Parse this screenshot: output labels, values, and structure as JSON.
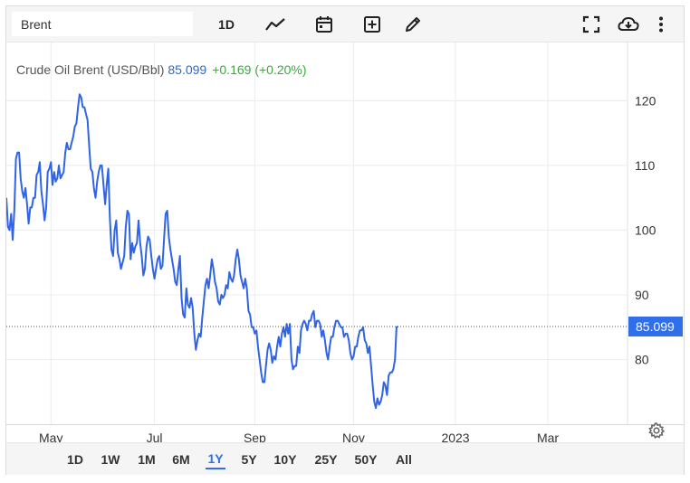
{
  "toolbar": {
    "search_value": "Brent",
    "timeframe_label": "1D",
    "icons": [
      "line-chart-icon",
      "calendar-icon",
      "plus-square-icon",
      "pencil-icon",
      "fullscreen-icon",
      "cloud-download-icon",
      "more-vertical-icon"
    ]
  },
  "legend": {
    "name": "Crude Oil Brent (USD/Bbl)",
    "price": "85.099",
    "change": "+0.169 (+0.20%)"
  },
  "range_buttons": [
    {
      "label": "1D"
    },
    {
      "label": "1W"
    },
    {
      "label": "1M"
    },
    {
      "label": "6M"
    },
    {
      "label": "1Y",
      "active": true
    },
    {
      "label": "5Y"
    },
    {
      "label": "10Y"
    },
    {
      "label": "25Y"
    },
    {
      "label": "50Y"
    },
    {
      "label": "All"
    }
  ],
  "colors": {
    "line": "#2f64e6",
    "price_tag": "#2f6fea",
    "positive": "#3aaa3a",
    "grid": "#ececec"
  },
  "chart_data": {
    "type": "line",
    "title": "Crude Oil Brent (USD/Bbl)",
    "ylim": [
      70,
      129
    ],
    "xlim": [
      0,
      390
    ],
    "y_ticks": [
      80,
      90,
      100,
      110,
      120
    ],
    "x_ticks": [
      {
        "label": "May",
        "x": 28
      },
      {
        "label": "Jul",
        "x": 93
      },
      {
        "label": "Sep",
        "x": 156
      },
      {
        "label": "Nov",
        "x": 218
      },
      {
        "label": "2023",
        "x": 282
      },
      {
        "label": "Mar",
        "x": 340
      }
    ],
    "last_value": "85.099",
    "grid": true,
    "series": [
      {
        "name": "Crude Oil Brent",
        "points": [
          [
            0,
            105
          ],
          [
            1,
            100.5
          ],
          [
            2,
            100
          ],
          [
            3,
            102.5
          ],
          [
            4,
            98.5
          ],
          [
            5,
            103
          ],
          [
            6,
            111
          ],
          [
            7,
            112
          ],
          [
            8,
            112
          ],
          [
            9,
            108
          ],
          [
            10,
            106
          ],
          [
            11,
            105
          ],
          [
            12,
            106.5
          ],
          [
            13,
            104
          ],
          [
            14,
            101
          ],
          [
            15,
            103.5
          ],
          [
            16,
            103.5
          ],
          [
            17,
            105
          ],
          [
            18,
            105
          ],
          [
            19,
            108.5
          ],
          [
            20,
            109
          ],
          [
            21,
            110.5
          ],
          [
            22,
            106
          ],
          [
            23,
            104
          ],
          [
            24,
            101.5
          ],
          [
            25,
            103.5
          ],
          [
            26,
            109
          ],
          [
            27,
            109.5
          ],
          [
            28,
            110.5
          ],
          [
            29,
            107
          ],
          [
            30,
            109
          ],
          [
            31,
            107.5
          ],
          [
            32,
            108
          ],
          [
            33,
            110
          ],
          [
            34,
            108
          ],
          [
            35,
            108.5
          ],
          [
            36,
            109
          ],
          [
            37,
            112
          ],
          [
            38,
            113.5
          ],
          [
            39,
            112.5
          ],
          [
            40,
            112.5
          ],
          [
            41,
            113.5
          ],
          [
            42,
            114.5
          ],
          [
            43,
            116
          ],
          [
            44,
            116.5
          ],
          [
            45,
            119
          ],
          [
            46,
            121
          ],
          [
            47,
            120.5
          ],
          [
            48,
            119
          ],
          [
            49,
            119
          ],
          [
            50,
            118
          ],
          [
            51,
            117
          ],
          [
            52,
            113
          ],
          [
            53,
            109.5
          ],
          [
            54,
            109
          ],
          [
            55,
            106.5
          ],
          [
            56,
            105
          ],
          [
            57,
            107.5
          ],
          [
            58,
            109
          ],
          [
            59,
            110
          ],
          [
            60,
            110
          ],
          [
            61,
            107
          ],
          [
            62,
            104
          ],
          [
            63,
            107
          ],
          [
            64,
            109.5
          ],
          [
            65,
            102
          ],
          [
            66,
            97
          ],
          [
            67,
            96
          ],
          [
            68,
            100
          ],
          [
            69,
            101.5
          ],
          [
            70,
            96.5
          ],
          [
            71,
            95.5
          ],
          [
            72,
            94
          ],
          [
            73,
            95
          ],
          [
            74,
            96
          ],
          [
            75,
            100.5
          ],
          [
            76,
            103
          ],
          [
            77,
            102.5
          ],
          [
            78,
            95.5
          ],
          [
            79,
            98
          ],
          [
            80,
            96.5
          ],
          [
            81,
            97.5
          ],
          [
            82,
            98
          ],
          [
            83,
            101.5
          ],
          [
            84,
            98
          ],
          [
            85,
            96
          ],
          [
            86,
            93
          ],
          [
            87,
            94
          ],
          [
            88,
            97.5
          ],
          [
            89,
            99
          ],
          [
            90,
            98.5
          ],
          [
            91,
            96
          ],
          [
            92,
            94
          ],
          [
            93,
            92.5
          ],
          [
            94,
            94
          ],
          [
            95,
            95.5
          ],
          [
            96,
            96
          ],
          [
            97,
            94
          ],
          [
            98,
            94.5
          ],
          [
            99,
            98.5
          ],
          [
            100,
            102.5
          ],
          [
            101,
            103
          ],
          [
            102,
            99
          ],
          [
            103,
            97
          ],
          [
            104,
            95.5
          ],
          [
            105,
            94
          ],
          [
            106,
            92
          ],
          [
            107,
            91.5
          ],
          [
            108,
            94
          ],
          [
            109,
            96
          ],
          [
            110,
            89.5
          ],
          [
            111,
            87
          ],
          [
            112,
            86.5
          ],
          [
            113,
            91
          ],
          [
            114,
            88.5
          ],
          [
            115,
            88
          ],
          [
            116,
            89.5
          ],
          [
            117,
            88
          ],
          [
            118,
            84
          ],
          [
            119,
            81.5
          ],
          [
            120,
            83
          ],
          [
            121,
            84
          ],
          [
            122,
            83.5
          ],
          [
            123,
            86.5
          ],
          [
            124,
            89
          ],
          [
            125,
            91.5
          ],
          [
            126,
            92.5
          ],
          [
            127,
            91
          ],
          [
            128,
            93
          ],
          [
            129,
            95.5
          ],
          [
            130,
            94
          ],
          [
            131,
            92
          ],
          [
            132,
            91
          ],
          [
            133,
            89
          ],
          [
            134,
            88.5
          ],
          [
            135,
            90
          ],
          [
            136,
            89.5
          ],
          [
            137,
            90
          ],
          [
            138,
            91.5
          ],
          [
            139,
            91
          ],
          [
            140,
            93.5
          ],
          [
            141,
            92.5
          ],
          [
            142,
            92
          ],
          [
            143,
            93
          ],
          [
            144,
            95.5
          ],
          [
            145,
            97
          ],
          [
            146,
            95.5
          ],
          [
            147,
            93
          ],
          [
            148,
            92
          ],
          [
            149,
            91
          ],
          [
            150,
            92.5
          ],
          [
            151,
            91
          ],
          [
            152,
            87.5
          ],
          [
            153,
            87
          ],
          [
            154,
            85
          ],
          [
            155,
            85
          ],
          [
            156,
            84
          ],
          [
            157,
            84.5
          ],
          [
            158,
            82
          ],
          [
            159,
            80
          ],
          [
            160,
            78
          ],
          [
            161,
            76.5
          ],
          [
            162,
            76.5
          ],
          [
            163,
            79
          ],
          [
            164,
            81.5
          ],
          [
            165,
            82.5
          ],
          [
            166,
            81.5
          ],
          [
            167,
            79.5
          ],
          [
            168,
            80.5
          ],
          [
            169,
            80
          ],
          [
            170,
            82
          ],
          [
            171,
            83.5
          ],
          [
            172,
            82
          ],
          [
            173,
            84
          ],
          [
            174,
            85
          ],
          [
            175,
            83.5
          ],
          [
            176,
            85.5
          ],
          [
            177,
            84
          ],
          [
            178,
            85.5
          ],
          [
            179,
            80
          ],
          [
            180,
            78.5
          ],
          [
            181,
            79
          ],
          [
            182,
            79
          ],
          [
            183,
            82
          ],
          [
            184,
            81
          ],
          [
            185,
            84.5
          ],
          [
            186,
            85.5
          ],
          [
            187,
            86
          ],
          [
            188,
            85.5
          ],
          [
            189,
            84.5
          ],
          [
            190,
            86
          ],
          [
            191,
            86
          ],
          [
            192,
            87
          ],
          [
            193,
            87.5
          ],
          [
            194,
            85
          ],
          [
            195,
            86
          ],
          [
            196,
            86
          ],
          [
            197,
            85.5
          ],
          [
            198,
            83.5
          ],
          [
            199,
            84.5
          ],
          [
            200,
            83
          ],
          [
            201,
            81
          ],
          [
            202,
            80
          ],
          [
            203,
            82
          ],
          [
            204,
            83.5
          ],
          [
            205,
            83.5
          ],
          [
            206,
            85
          ],
          [
            207,
            86
          ],
          [
            208,
            86
          ],
          [
            209,
            85.5
          ],
          [
            210,
            85
          ],
          [
            211,
            85
          ],
          [
            212,
            83.5
          ],
          [
            213,
            84
          ],
          [
            214,
            84
          ],
          [
            215,
            83
          ],
          [
            216,
            81
          ],
          [
            217,
            80
          ],
          [
            218,
            80.5
          ],
          [
            219,
            82
          ],
          [
            220,
            82
          ],
          [
            221,
            83.5
          ],
          [
            222,
            84.5
          ],
          [
            223,
            84.5
          ],
          [
            224,
            85
          ],
          [
            225,
            83
          ],
          [
            226,
            82.5
          ],
          [
            227,
            81
          ],
          [
            228,
            82
          ],
          [
            229,
            79
          ],
          [
            230,
            76
          ],
          [
            231,
            73.5
          ],
          [
            232,
            72.5
          ],
          [
            233,
            74
          ],
          [
            234,
            73
          ],
          [
            235,
            73.5
          ],
          [
            236,
            74.5
          ],
          [
            237,
            76.5
          ],
          [
            238,
            76
          ],
          [
            239,
            74.5
          ],
          [
            240,
            77.5
          ],
          [
            241,
            78
          ],
          [
            242,
            78
          ],
          [
            243,
            78.5
          ],
          [
            244,
            80
          ],
          [
            245,
            85
          ],
          [
            246,
            85.1
          ]
        ]
      }
    ]
  }
}
